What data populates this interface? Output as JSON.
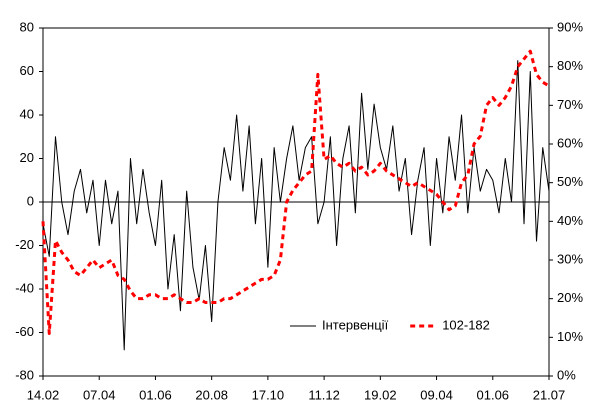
{
  "chart_data": {
    "type": "line",
    "categories": [
      "14.02",
      null,
      null,
      null,
      null,
      null,
      null,
      null,
      null,
      "07.04",
      null,
      null,
      null,
      null,
      null,
      null,
      null,
      null,
      "01.06",
      null,
      null,
      null,
      null,
      null,
      null,
      null,
      null,
      "20.08",
      null,
      null,
      null,
      null,
      null,
      null,
      null,
      null,
      "17.10",
      null,
      null,
      null,
      null,
      null,
      null,
      null,
      null,
      "11.12",
      null,
      null,
      null,
      null,
      null,
      null,
      null,
      null,
      "19.02",
      null,
      null,
      null,
      null,
      null,
      null,
      null,
      null,
      "09.04",
      null,
      null,
      null,
      null,
      null,
      null,
      null,
      null,
      "01.06",
      null,
      null,
      null,
      null,
      null,
      null,
      null,
      null,
      "21.07"
    ],
    "series": [
      {
        "name": "Інтервенції",
        "color": "#000000",
        "linestyle": "solid",
        "axis": "y",
        "values": [
          -10,
          -25,
          30,
          0,
          -15,
          5,
          15,
          -5,
          10,
          -20,
          10,
          -10,
          5,
          -68,
          20,
          -10,
          15,
          -5,
          -20,
          10,
          -40,
          -15,
          -50,
          5,
          -30,
          -45,
          -20,
          -55,
          0,
          25,
          10,
          40,
          5,
          35,
          -10,
          20,
          -30,
          25,
          0,
          20,
          35,
          10,
          25,
          30,
          -10,
          0,
          30,
          -20,
          20,
          35,
          -5,
          50,
          15,
          45,
          25,
          15,
          35,
          5,
          20,
          -15,
          10,
          25,
          -20,
          20,
          -5,
          30,
          10,
          40,
          -5,
          25,
          5,
          15,
          10,
          -5,
          20,
          0,
          65,
          -10,
          60,
          -18,
          25,
          5
        ]
      },
      {
        "name": "102-182",
        "color": "#ff0000",
        "linestyle": "dashed",
        "axis": "y2",
        "values": [
          40,
          11,
          35,
          32,
          30,
          27,
          26,
          28,
          30,
          28,
          29,
          30,
          26,
          25,
          22,
          20,
          20,
          21,
          21,
          20,
          20,
          21,
          20,
          19,
          19,
          20,
          19,
          19,
          19,
          20,
          20,
          21,
          22,
          23,
          24,
          25,
          25,
          26,
          30,
          45,
          48,
          50,
          52,
          53,
          78,
          56,
          57,
          55,
          54,
          55,
          53,
          54,
          52,
          53,
          55,
          53,
          52,
          51,
          50,
          49,
          50,
          49,
          48,
          47,
          45,
          43,
          44,
          50,
          52,
          60,
          62,
          70,
          72,
          70,
          72,
          75,
          80,
          82,
          84,
          78,
          76,
          75
        ]
      }
    ],
    "ylim": [
      -80,
      80
    ],
    "yticks": [
      -80,
      -60,
      -40,
      -20,
      0,
      20,
      40,
      60,
      80
    ],
    "y2lim": [
      0,
      90
    ],
    "y2ticks": [
      {
        "value": 0,
        "label": "0%"
      },
      {
        "value": 10,
        "label": "10%"
      },
      {
        "value": 20,
        "label": "20%"
      },
      {
        "value": 30,
        "label": "30%"
      },
      {
        "value": 40,
        "label": "40%"
      },
      {
        "value": 50,
        "label": "50%"
      },
      {
        "value": 60,
        "label": "60%"
      },
      {
        "value": 70,
        "label": "70%"
      },
      {
        "value": 80,
        "label": "80%"
      },
      {
        "value": 90,
        "label": "90%"
      }
    ],
    "grid": false,
    "legend": "lower right"
  }
}
